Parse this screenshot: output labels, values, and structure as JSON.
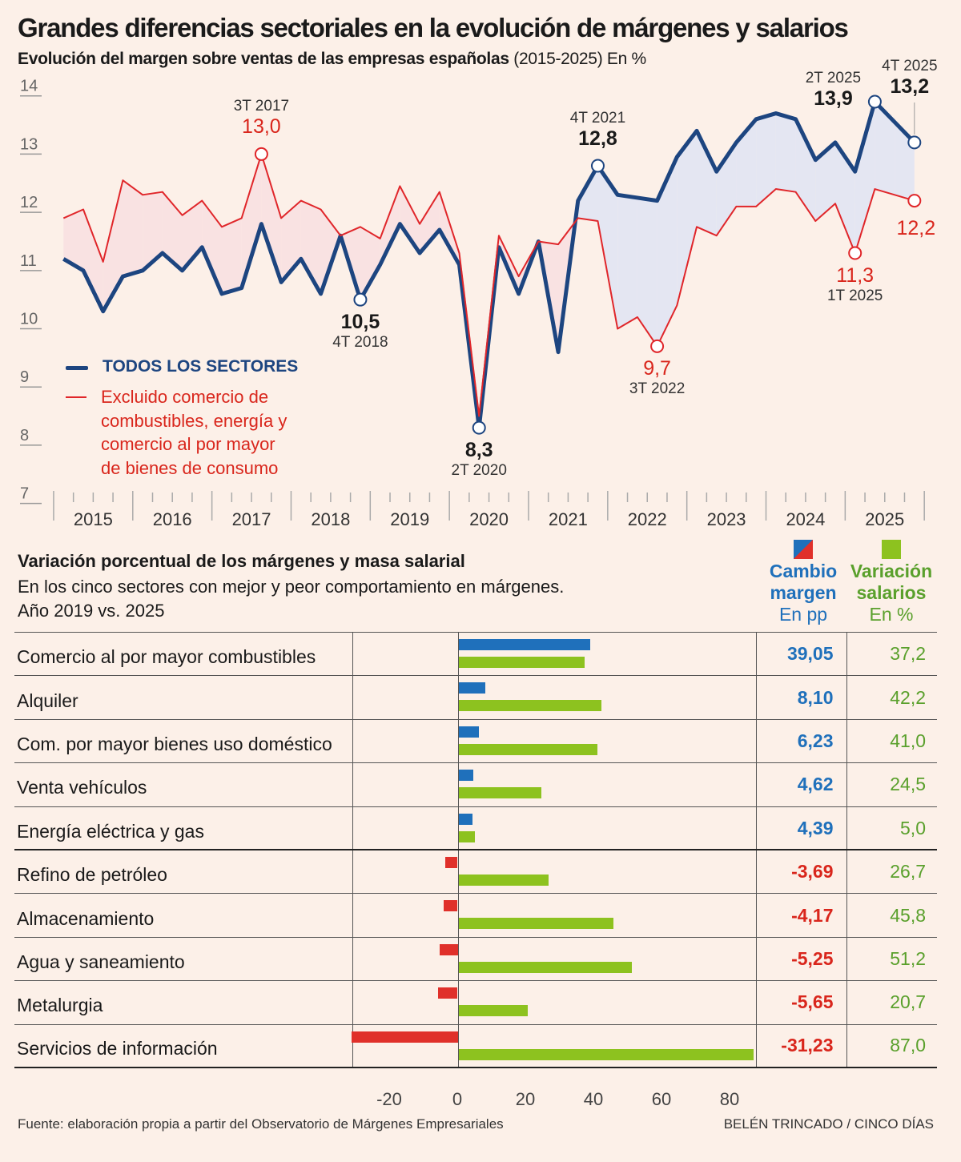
{
  "title": "Grandes diferencias sectoriales en la evolución de márgenes y salarios",
  "subtitle_bold": "Evolución del margen sobre ventas de las empresas españolas",
  "subtitle_rest": " (2015-2025) En %",
  "colors": {
    "blue_line": "#1d4580",
    "red_line": "#e0262a",
    "blue_bar": "#1f70bb",
    "red_bar": "#e0302a",
    "green_bar": "#8dc21f",
    "green_text": "#5aa02c"
  },
  "chart_data": [
    {
      "type": "line",
      "ylim": [
        7,
        14
      ],
      "yticks": [
        "14",
        "13",
        "12",
        "11",
        "10",
        "9",
        "8",
        "7"
      ],
      "xticks": [
        "2015",
        "2016",
        "2017",
        "2018",
        "2019",
        "2020",
        "2021",
        "2022",
        "2023",
        "2024",
        "2025"
      ],
      "x_unit": "quarter, 1T 2015 to 4T 2025",
      "series": [
        {
          "name": "TODOS LOS SECTORES",
          "color": "#1d4580",
          "values": [
            11.2,
            11.0,
            10.3,
            10.9,
            11.0,
            11.3,
            11.0,
            11.4,
            10.6,
            10.7,
            11.8,
            10.8,
            11.2,
            10.6,
            11.6,
            10.5,
            11.1,
            11.8,
            11.3,
            11.7,
            11.1,
            8.3,
            11.4,
            10.6,
            11.5,
            9.6,
            12.2,
            12.8,
            12.3,
            12.25,
            12.2,
            12.95,
            13.4,
            12.7,
            13.2,
            13.6,
            13.7,
            13.6,
            12.9,
            13.2,
            12.7,
            13.9,
            13.55,
            13.2
          ]
        },
        {
          "name": "Excluido comercio de combustibles, energía y comercio al por mayor de bienes de consumo",
          "color": "#e0262a",
          "values": [
            11.9,
            12.05,
            11.15,
            12.55,
            12.3,
            12.35,
            11.95,
            12.2,
            11.75,
            11.9,
            13.0,
            11.9,
            12.2,
            12.05,
            11.6,
            11.75,
            11.55,
            12.45,
            11.8,
            12.35,
            11.3,
            8.5,
            11.6,
            10.9,
            11.5,
            11.45,
            11.9,
            11.85,
            10.0,
            10.2,
            9.7,
            10.4,
            11.75,
            11.6,
            12.1,
            12.1,
            12.4,
            12.35,
            11.85,
            12.15,
            11.3,
            12.4,
            12.3,
            12.2
          ]
        }
      ],
      "legend": [
        "TODOS LOS SECTORES",
        "Excluido comercio de",
        "combustibles, energía y",
        "comercio al por mayor",
        "de bienes de consumo"
      ],
      "annotations": [
        {
          "series": 1,
          "index": 10,
          "period": "3T 2017",
          "value": "13,0"
        },
        {
          "series": 0,
          "index": 15,
          "period": "4T 2018",
          "value": "10,5"
        },
        {
          "series": 0,
          "index": 21,
          "period": "2T 2020",
          "value": "8,3"
        },
        {
          "series": 0,
          "index": 27,
          "period": "4T 2021",
          "value": "12,8"
        },
        {
          "series": 1,
          "index": 30,
          "period": "3T 2022",
          "value": "9,7"
        },
        {
          "series": 1,
          "index": 40,
          "period": "1T 2025",
          "value": "11,3"
        },
        {
          "series": 0,
          "index": 41,
          "period": "2T 2025",
          "value": "13,9"
        },
        {
          "series": 0,
          "index": 43,
          "period": "4T 2025",
          "value": "13,2"
        },
        {
          "series": 1,
          "index": 43,
          "period": "",
          "value": "12,2"
        }
      ]
    },
    {
      "type": "bar",
      "title": "Variación porcentual de los márgenes y masa salarial",
      "subtitle": "En los cinco sectores con mejor y peor comportamiento en márgenes. Año 2019 vs. 2025",
      "xlim": [
        -30,
        90
      ],
      "xticks": [
        "-20",
        "0",
        "20",
        "40",
        "60",
        "80"
      ],
      "categories": [
        "Comercio al por mayor combustibles",
        "Alquiler",
        "Com. por mayor bienes uso doméstico",
        "Venta vehículos",
        "Energía eléctrica y gas",
        "Refino de petróleo",
        "Almacenamiento",
        "Agua y saneamiento",
        "Metalurgia",
        "Servicios de información"
      ],
      "series": [
        {
          "name": "Cambio margen",
          "values": [
            39.05,
            8.1,
            6.23,
            4.62,
            4.39,
            -3.69,
            -4.17,
            -5.25,
            -5.65,
            -31.23
          ],
          "labels": [
            "39,05",
            "8,10",
            "6,23",
            "4,62",
            "4,39",
            "-3,69",
            "-4,17",
            "-5,25",
            "-5,65",
            "-31,23"
          ]
        },
        {
          "name": "Variación salarios",
          "values": [
            37.2,
            42.2,
            41.0,
            24.5,
            5.0,
            26.7,
            45.8,
            51.2,
            20.7,
            87.0
          ],
          "labels": [
            "37,2",
            "42,2",
            "41,0",
            "24,5",
            "5,0",
            "26,7",
            "45,8",
            "51,2",
            "20,7",
            "87,0"
          ]
        }
      ]
    }
  ],
  "sec2": {
    "title": "Variación porcentual de los márgenes y masa salarial",
    "sub1": "En los cinco sectores con mejor y peor comportamiento en márgenes.",
    "sub2": "Año 2019 vs. 2025"
  },
  "columns": {
    "margin": {
      "l1": "Cambio",
      "l2": "margen",
      "l3": "En pp"
    },
    "salary": {
      "l1": "Variación",
      "l2": "salarios",
      "l3": "En %"
    }
  },
  "source": "Fuente: elaboración propia a partir del Observatorio de Márgenes Empresariales",
  "credit": "BELÉN TRINCADO / CINCO DÍAS"
}
